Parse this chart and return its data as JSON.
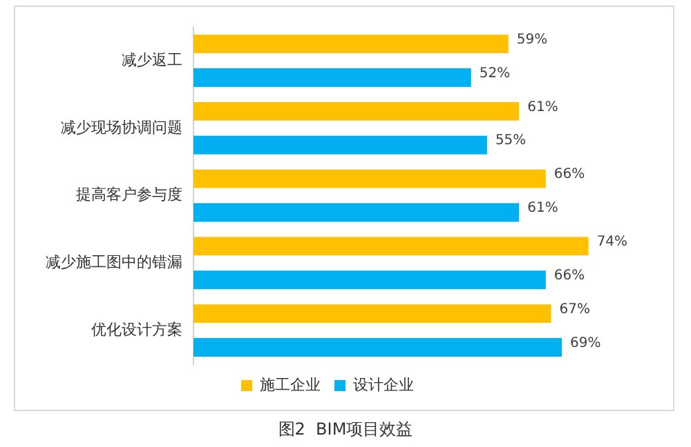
{
  "chart_data": {
    "type": "bar",
    "orientation": "horizontal",
    "categories": [
      "减少返工",
      "减少现场协调问题",
      "提高客户参与度",
      "减少施工图中的错漏",
      "优化设计方案"
    ],
    "series": [
      {
        "name": "施工企业",
        "color": "#ffc000",
        "values": [
          59,
          61,
          66,
          74,
          67
        ],
        "value_labels": [
          "59%",
          "61%",
          "66%",
          "74%",
          "67%"
        ]
      },
      {
        "name": "设计企业",
        "color": "#00b0f0",
        "values": [
          52,
          55,
          61,
          66,
          69
        ],
        "value_labels": [
          "52%",
          "55%",
          "61%",
          "66%",
          "69%"
        ]
      }
    ],
    "legend": "bottom",
    "tick_labels": "y",
    "annotations": [
      "图2  BIM项目效益"
    ]
  }
}
